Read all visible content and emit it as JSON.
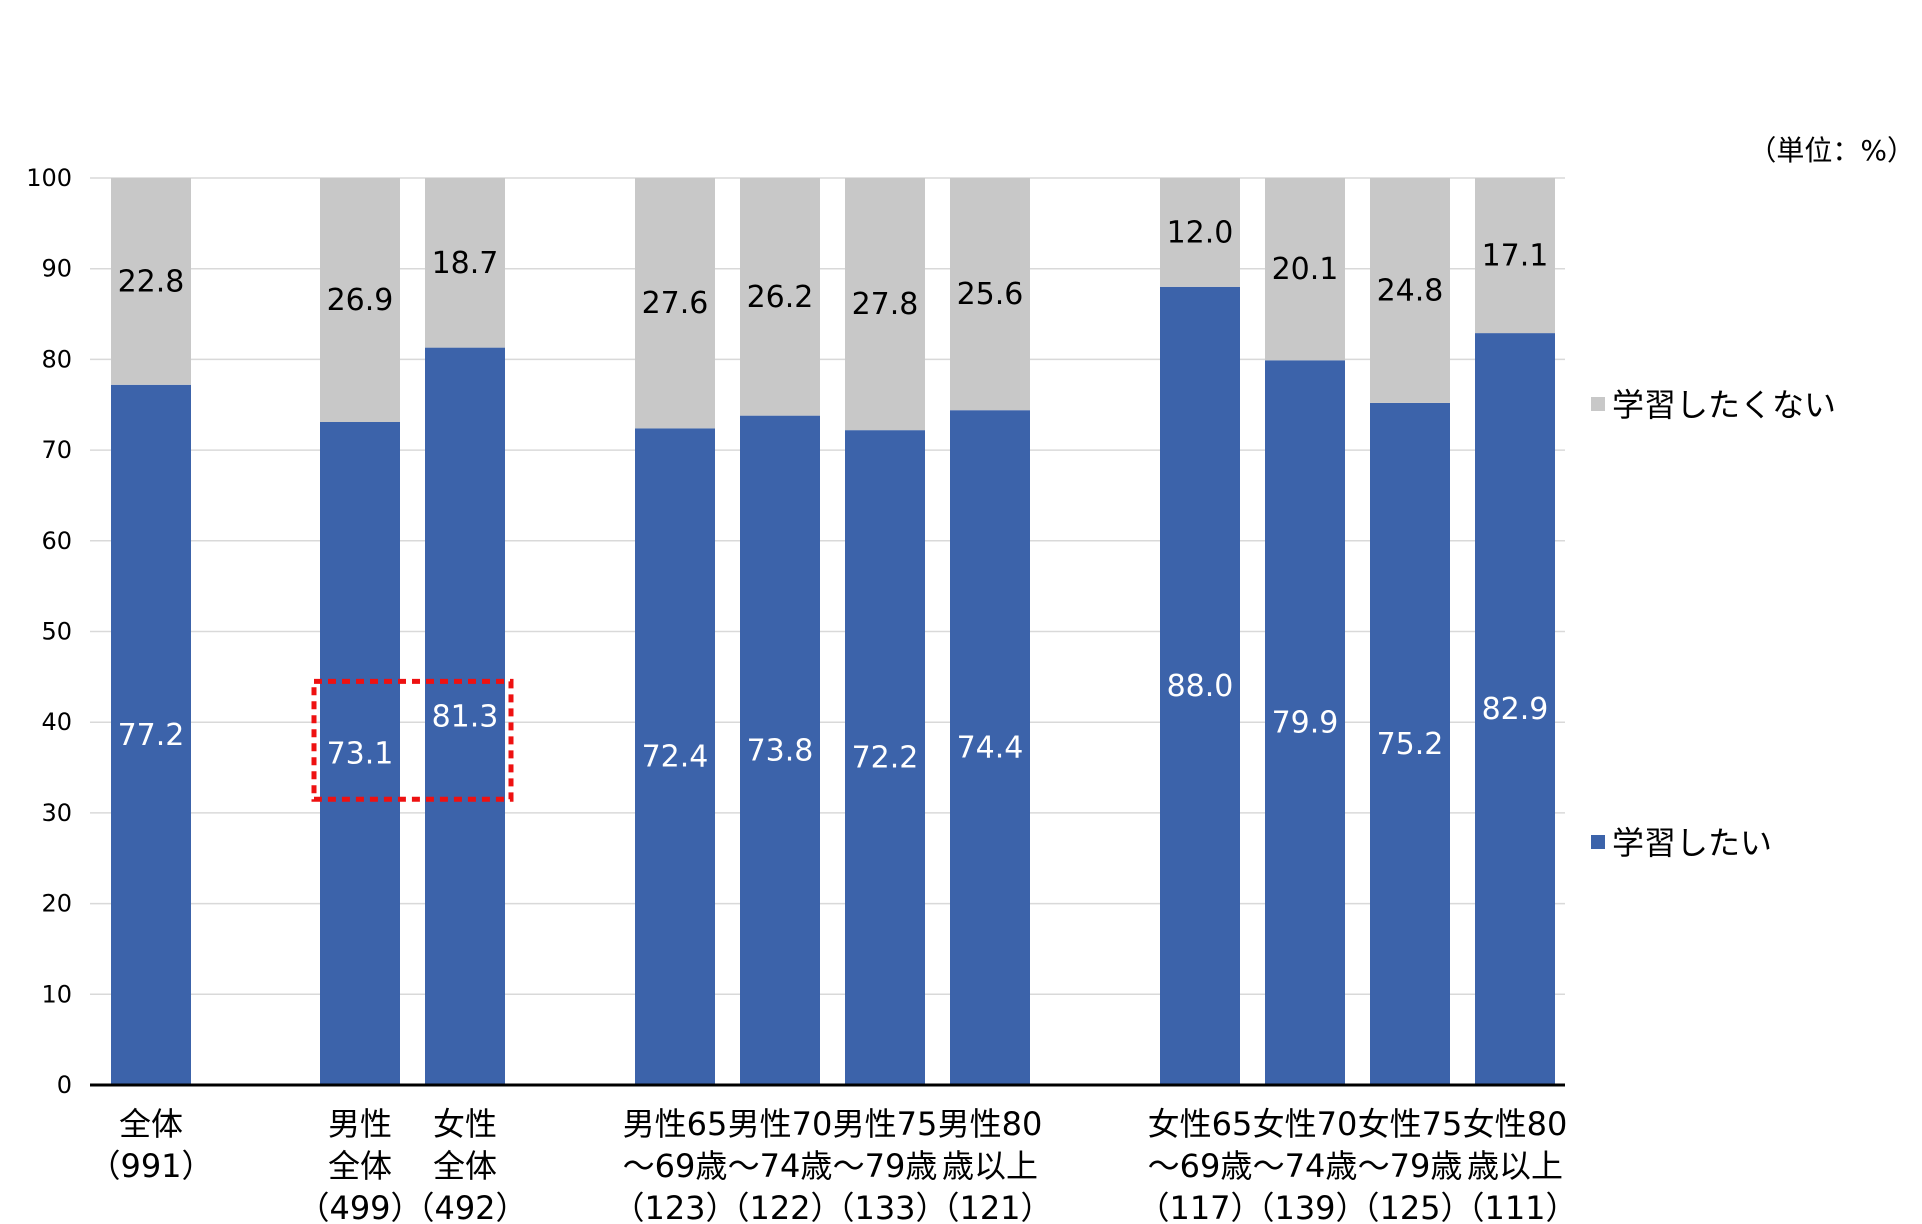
{
  "chart_data": {
    "type": "bar",
    "stacked": true,
    "unit_label": "（単位：%）",
    "ylim": [
      0,
      100
    ],
    "yticks": [
      0,
      10,
      20,
      30,
      40,
      50,
      60,
      70,
      80,
      90,
      100
    ],
    "grid": true,
    "legend_position": "right",
    "colors": {
      "learn": "#3c63aa",
      "no_learn": "#c8c8c8",
      "highlight": "#ee1111"
    },
    "categories": [
      {
        "lines": [
          "全体",
          "（991）"
        ]
      },
      {
        "lines": [
          "男性",
          "全体",
          "（499）"
        ]
      },
      {
        "lines": [
          "女性",
          "全体",
          "（492）"
        ]
      },
      {
        "lines": [
          "男性65",
          "～69歳",
          "（123）"
        ]
      },
      {
        "lines": [
          "男性70",
          "～74歳",
          "（122）"
        ]
      },
      {
        "lines": [
          "男性75",
          "～79歳",
          "（133）"
        ]
      },
      {
        "lines": [
          "男性80",
          "歳以上",
          "（121）"
        ]
      },
      {
        "lines": [
          "女性65",
          "～69歳",
          "（117）"
        ]
      },
      {
        "lines": [
          "女性70",
          "～74歳",
          "（139）"
        ]
      },
      {
        "lines": [
          "女性75",
          "～79歳",
          "（125）"
        ]
      },
      {
        "lines": [
          "女性80",
          "歳以上",
          "（111）"
        ]
      }
    ],
    "series": [
      {
        "key": "learn",
        "name": "学習したい",
        "values": [
          77.2,
          73.1,
          81.3,
          72.4,
          73.8,
          72.2,
          74.4,
          88.0,
          79.9,
          75.2,
          82.9
        ],
        "labels": [
          "77.2",
          "73.1",
          "81.3",
          "72.4",
          "73.8",
          "72.2",
          "74.4",
          "88.0",
          "79.9",
          "75.2",
          "82.9"
        ]
      },
      {
        "key": "no_learn",
        "name": "学習したくない",
        "values": [
          22.8,
          26.9,
          18.7,
          27.6,
          26.2,
          27.8,
          25.6,
          12.0,
          20.1,
          24.8,
          17.1
        ],
        "labels": [
          "22.8",
          "26.9",
          "18.7",
          "27.6",
          "26.2",
          "27.8",
          "25.6",
          "12.0",
          "20.1",
          "24.8",
          "17.1"
        ]
      }
    ],
    "annotation": {
      "type": "dashed-box",
      "categories": [
        1,
        2
      ],
      "y_range": [
        31.5,
        44.5
      ]
    }
  }
}
